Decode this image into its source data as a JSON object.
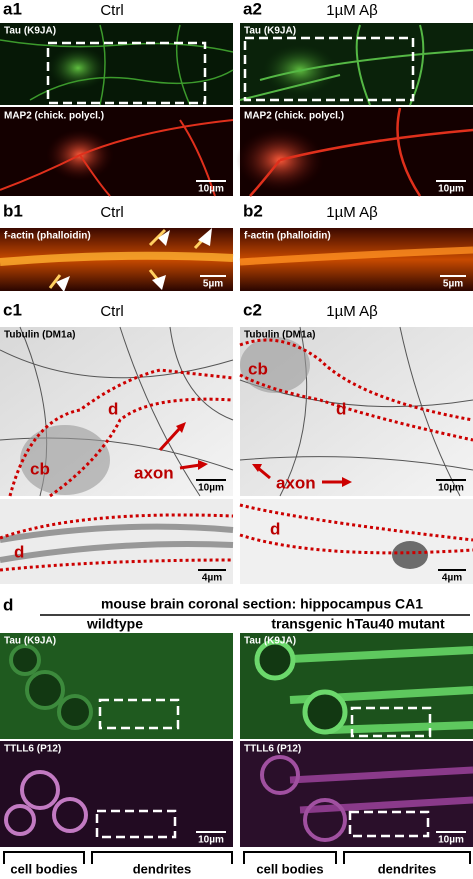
{
  "panel_a": {
    "left": {
      "label": "a1",
      "condition": "Ctrl",
      "stain_top": "Tau (K9JA)",
      "stain_bottom": "MAP2 (chick. polycl.)",
      "scale": "10µm"
    },
    "right": {
      "label": "a2",
      "condition": "1µM Aβ",
      "stain_top": "Tau (K9JA)",
      "stain_bottom": "MAP2 (chick. polycl.)",
      "scale": "10µm"
    }
  },
  "panel_b": {
    "left": {
      "label": "b1",
      "condition": "Ctrl",
      "stain": "f-actin (phalloidin)",
      "scale": "5µm"
    },
    "right": {
      "label": "b2",
      "condition": "1µM Aβ",
      "stain": "f-actin (phalloidin)",
      "scale": "5µm"
    }
  },
  "panel_c": {
    "left": {
      "label": "c1",
      "condition": "Ctrl",
      "stain": "Tubulin (DM1a)",
      "annotations": [
        "d",
        "cb",
        "axon"
      ],
      "scale_top": "10µm",
      "zoom_annotation": "d",
      "scale_bottom": "4µm"
    },
    "right": {
      "label": "c2",
      "condition": "1µM Aβ",
      "stain": "Tubulin (DM1a)",
      "annotations": [
        "cb",
        "d",
        "axon"
      ],
      "scale_top": "10µm",
      "zoom_annotation": "d",
      "scale_bottom": "4µm"
    }
  },
  "panel_d": {
    "label": "d",
    "title": "mouse brain coronal section: hippocampus CA1",
    "left": {
      "genotype": "wildtype",
      "stain_top": "Tau (K9JA)",
      "stain_bottom": "TTLL6 (P12)",
      "scale": "10µm",
      "regions": [
        "cell bodies",
        "dendrites"
      ]
    },
    "right": {
      "genotype": "transgenic hTau40 mutant",
      "stain_top": "Tau (K9JA)",
      "stain_bottom": "TTLL6 (P12)",
      "scale": "10µm",
      "regions": [
        "cell bodies",
        "dendrites"
      ]
    }
  }
}
